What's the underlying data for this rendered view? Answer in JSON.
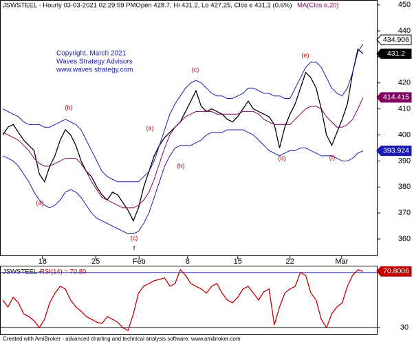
{
  "chart_data": [
    {
      "type": "line",
      "title": "JSWSTEEL - Hourly 03-03-2021 02:29:59 PMOpen 428.7, Hi 431.2, Lo 427.25, Clos e 431.2 (0.6%)",
      "subtitle": "MA(Clos e,20)",
      "annotations": [
        "Copyright, March 2021",
        "Waves Strategy Advisors",
        "www.waves strategy.com",
        "(b)",
        "(a)",
        "(c)",
        "f",
        "(a)",
        "(b)",
        "(c)",
        "(d)",
        "(e)",
        "(f)"
      ],
      "xlim": [
        0,
        69
      ],
      "xticks": [
        {
          "value": 7.6,
          "label": "18"
        },
        {
          "value": 17.8,
          "label": "25"
        },
        {
          "value": 26.1,
          "label": "Feb"
        },
        {
          "value": 35.4,
          "label": "8"
        },
        {
          "value": 45,
          "label": "15"
        },
        {
          "value": 55,
          "label": "22"
        },
        {
          "value": 64.9,
          "label": "Mar"
        }
      ],
      "ylim": [
        353.7,
        451.6
      ],
      "yticks": [
        360,
        370,
        380,
        390,
        400,
        410,
        420,
        430,
        440,
        450
      ],
      "series": [
        {
          "name": "Close",
          "color": "#000000",
          "values": [
            400,
            403,
            404,
            401,
            398,
            396,
            394,
            385,
            382,
            388,
            392,
            398,
            402,
            400,
            396,
            390,
            386,
            384,
            380,
            377,
            375,
            378,
            377,
            374,
            371,
            367,
            372,
            380,
            386,
            392,
            396,
            399,
            401,
            403,
            405,
            409,
            413,
            417,
            411,
            409,
            410,
            409,
            408,
            406,
            405,
            407,
            410,
            413,
            410,
            409,
            408,
            407,
            404,
            395,
            403,
            408,
            412,
            418,
            424,
            422,
            418,
            410,
            400,
            396,
            401,
            406,
            412,
            424,
            433,
            431.2
          ]
        },
        {
          "name": "Upper band",
          "color": "#1a1ab0",
          "values": [
            410,
            409,
            408,
            407,
            405,
            404,
            404,
            404,
            403,
            403,
            404,
            405,
            406,
            405,
            404,
            402,
            398,
            394,
            390,
            386,
            384,
            383,
            382,
            382,
            382,
            382,
            382,
            384,
            386,
            390,
            396,
            402,
            408,
            412,
            415,
            418,
            420,
            421,
            420,
            418,
            416,
            415,
            415,
            414,
            414,
            415,
            416,
            418,
            418,
            417,
            416,
            416,
            415,
            415,
            414,
            414,
            418,
            422,
            426,
            428,
            428,
            426,
            422,
            418,
            416,
            415,
            418,
            424,
            432,
            434.906
          ]
        },
        {
          "name": "Lower band",
          "color": "#1a1ab0",
          "values": [
            392,
            391,
            390,
            388,
            385,
            382,
            378,
            375,
            373,
            372,
            373,
            375,
            378,
            379,
            378,
            376,
            373,
            370,
            368,
            367,
            366,
            365,
            364,
            363,
            362,
            362,
            363,
            366,
            370,
            376,
            382,
            388,
            392,
            395,
            396,
            396,
            396,
            397,
            398,
            400,
            401,
            401,
            401,
            402,
            402,
            402,
            402,
            401,
            400,
            398,
            396,
            394,
            393,
            392,
            393,
            394,
            394,
            395,
            395,
            394,
            393,
            392,
            392,
            392,
            391,
            390,
            390,
            391,
            393,
            393.924
          ]
        },
        {
          "name": "MA",
          "color": "#800060",
          "values": [
            401,
            400,
            399,
            398,
            396,
            394,
            391,
            389,
            388,
            388,
            389,
            390,
            391,
            391,
            391,
            389,
            386,
            382,
            379,
            376,
            375,
            374,
            373,
            372,
            372,
            372,
            373,
            375,
            378,
            383,
            389,
            395,
            400,
            403,
            405,
            407,
            408,
            409,
            409,
            409,
            409,
            408,
            408,
            408,
            408,
            408,
            409,
            409,
            409,
            408,
            406,
            405,
            404,
            404,
            404,
            404,
            406,
            408,
            410,
            411,
            411,
            410,
            407,
            405,
            403,
            403,
            404,
            406,
            410,
            414.415
          ]
        }
      ]
    },
    {
      "type": "line",
      "title": "JSWSTEEL - ",
      "subtitle": "RSI(14) = 70.80",
      "xlim": [
        0,
        69
      ],
      "ylim": [
        25.1,
        74.4
      ],
      "yticks": [
        30
      ],
      "levels": [
        70,
        30
      ],
      "series": [
        {
          "name": "RSI",
          "color": "#c00000",
          "values": [
            50,
            45,
            52,
            48,
            40,
            38,
            35,
            30,
            36,
            48,
            55,
            60,
            58,
            50,
            45,
            42,
            38,
            36,
            34,
            33,
            38,
            36,
            34,
            30,
            28,
            40,
            55,
            60,
            62,
            64,
            65,
            66,
            60,
            62,
            72,
            68,
            62,
            60,
            58,
            55,
            60,
            62,
            55,
            50,
            48,
            52,
            58,
            60,
            55,
            50,
            56,
            58,
            32,
            45,
            55,
            58,
            60,
            70,
            68,
            55,
            50,
            36,
            30,
            40,
            45,
            48,
            60,
            68,
            72,
            70.8006
          ]
        }
      ]
    },
    {
      "type": "text",
      "title": "Created with AmiBroker - advanced charting and technical analysis software. www.amibroker.com"
    }
  ]
}
